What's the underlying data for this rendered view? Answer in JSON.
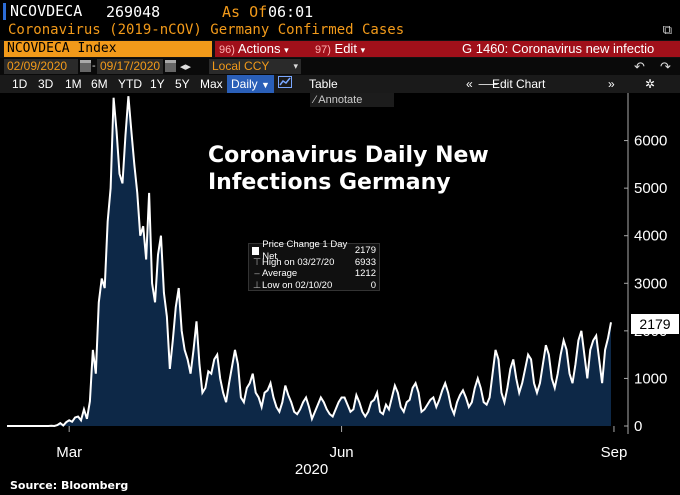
{
  "header": {
    "ticker": "NCOVDECA",
    "value": "269048",
    "as_of_label": "As Of",
    "time": "06:01"
  },
  "security": {
    "description": "Coronavirus (2019-nCOV) Germany Confirmed Cases",
    "popout_icon": "popout-icon"
  },
  "menubar": {
    "index_name": "NCOVDECA Index",
    "actions_num": "96)",
    "actions_label": "Actions",
    "edit_num": "97)",
    "edit_label": "Edit",
    "function_title": "G 1460: Coronavirus new infectio",
    "colors": {
      "index_bg": "#f29a1a",
      "menu_bg": "#a0101a"
    }
  },
  "date_range": {
    "start": "02/09/2020",
    "end": "09/17/2020",
    "currency": "Local CCY"
  },
  "toolbar": {
    "periods": [
      "1D",
      "3D",
      "1M",
      "6M",
      "YTD",
      "1Y",
      "5Y",
      "Max"
    ],
    "frequency": "Daily",
    "table_label": "Table",
    "edit_chart_label": "Edit Chart",
    "annotate_label": "Annotate"
  },
  "chart_data": {
    "type": "area",
    "title": "Coronavirus Daily New Infections Germany",
    "x_month_labels": [
      "Mar",
      "Jun",
      "Sep"
    ],
    "x_year_label": "2020",
    "y_ticks": [
      "0",
      "1000",
      "2000",
      "3000",
      "4000",
      "5000",
      "6000"
    ],
    "ylim": [
      0,
      7000
    ],
    "last_value": "2179",
    "series_color": "#ffffff",
    "fill_color": "#0d2847",
    "x_start": "2020-02-09",
    "values": [
      0,
      0,
      0,
      0,
      0,
      0,
      0,
      0,
      0,
      0,
      0,
      0,
      0,
      0,
      0,
      5,
      0,
      20,
      60,
      10,
      80,
      120,
      90,
      180,
      200,
      120,
      350,
      150,
      520,
      1600,
      1100,
      2600,
      3100,
      2900,
      4300,
      5000,
      6900,
      6200,
      5300,
      5100,
      6100,
      6933,
      6200,
      5500,
      4900,
      4000,
      4200,
      3500,
      4900,
      3000,
      2600,
      3600,
      4000,
      2800,
      2300,
      1200,
      1800,
      2500,
      2900,
      2000,
      1600,
      1400,
      1100,
      1600,
      2200,
      1300,
      700,
      800,
      1150,
      1100,
      1400,
      1500,
      1000,
      700,
      500,
      900,
      1250,
      1600,
      1300,
      600,
      500,
      800,
      900,
      1100,
      700,
      600,
      400,
      700,
      750,
      900,
      600,
      400,
      300,
      500,
      850,
      650,
      500,
      300,
      250,
      350,
      500,
      600,
      400,
      150,
      300,
      450,
      600,
      500,
      350,
      250,
      200,
      350,
      500,
      600,
      600,
      450,
      300,
      350,
      650,
      500,
      300,
      200,
      300,
      500,
      550,
      700,
      300,
      250,
      450,
      350,
      600,
      850,
      700,
      400,
      300,
      500,
      550,
      800,
      900,
      700,
      300,
      350,
      450,
      550,
      600,
      400,
      550,
      750,
      900,
      700,
      400,
      250,
      500,
      650,
      750,
      600,
      400,
      500,
      800,
      1000,
      800,
      500,
      450,
      600,
      1100,
      1600,
      1400,
      700,
      500,
      800,
      1200,
      1400,
      1000,
      700,
      900,
      1200,
      1500,
      1400,
      900,
      700,
      900,
      1300,
      1700,
      1500,
      1000,
      800,
      1100,
      1500,
      1800,
      1600,
      1100,
      900,
      1300,
      1800,
      2000,
      1500,
      1000,
      1600,
      1800,
      1900,
      1400,
      900,
      1600,
      1850,
      2179
    ]
  },
  "highlights": {
    "title": "Price Change 1 Day Net",
    "title_value": "2179",
    "high_label": "High on 03/27/20",
    "high_value": "6933",
    "avg_label": "Average",
    "avg_value": "1212",
    "low_label": "Low on 02/10/20",
    "low_value": "0"
  },
  "footer": {
    "source": "Source: Bloomberg"
  }
}
